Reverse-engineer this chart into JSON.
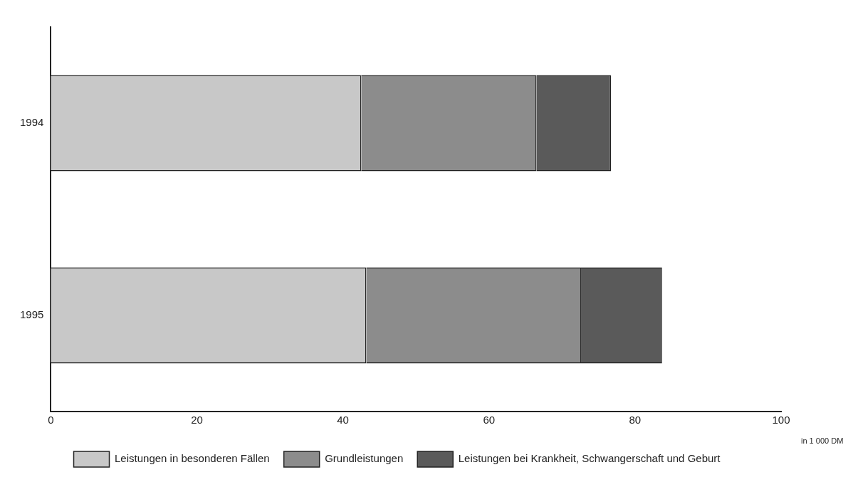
{
  "chart_data": {
    "type": "bar",
    "orientation": "horizontal",
    "stacked": true,
    "xlabel": "in 1 000 DM",
    "categories": [
      "1994",
      "1995"
    ],
    "series": [
      {
        "name": "Leistungen in besonderen Fällen",
        "color": "#c8c8c8",
        "values": [
          42.5,
          43.2
        ]
      },
      {
        "name": "Grundleistungen",
        "color": "#8c8c8c",
        "values": [
          24.0,
          29.4
        ]
      },
      {
        "name": "Leistungen bei Krankheit, Schwangerschaft und Geburt",
        "color": "#5a5a5a",
        "values": [
          10.2,
          11.1
        ]
      }
    ],
    "xlim": [
      0,
      100
    ],
    "xticks": [
      0,
      20,
      40,
      60,
      80,
      100
    ],
    "grid": false,
    "legend": "bottom"
  }
}
